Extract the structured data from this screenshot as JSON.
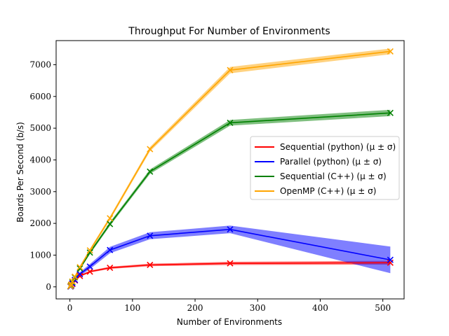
{
  "chart_data": {
    "type": "line",
    "title": "Throughput For Number of Environments",
    "xlabel": "Number of Environments",
    "ylabel": "Boards Per Second (b/s)",
    "xlim": [
      -22,
      534
    ],
    "ylim": [
      -380,
      7760
    ],
    "x_ticks": [
      0,
      100,
      200,
      300,
      400,
      500
    ],
    "y_ticks": [
      0,
      1000,
      2000,
      3000,
      4000,
      5000,
      6000,
      7000
    ],
    "grid": false,
    "legend_position": "center-right",
    "x": [
      1,
      2,
      4,
      8,
      16,
      32,
      64,
      128,
      256,
      512
    ],
    "series": [
      {
        "name": "Sequential (python) (μ ± σ)",
        "color": "#ff0000",
        "values": [
          10,
          30,
          90,
          200,
          340,
          480,
          600,
          690,
          740,
          760
        ],
        "std": [
          5,
          8,
          15,
          20,
          25,
          30,
          35,
          40,
          50,
          60
        ]
      },
      {
        "name": "Parallel (python) (μ ± σ)",
        "color": "#0000ff",
        "values": [
          10,
          40,
          110,
          220,
          400,
          640,
          1160,
          1610,
          1810,
          850
        ],
        "std": [
          5,
          10,
          20,
          40,
          60,
          80,
          100,
          110,
          120,
          420
        ]
      },
      {
        "name": "Sequential (C++) (μ ± σ)",
        "color": "#008000",
        "values": [
          20,
          60,
          150,
          300,
          580,
          1080,
          1980,
          3630,
          5170,
          5480
        ],
        "std": [
          5,
          10,
          20,
          30,
          40,
          50,
          60,
          70,
          90,
          100
        ]
      },
      {
        "name": "OpenMP (C++) (μ ± σ)",
        "color": "#ffa500",
        "values": [
          25,
          70,
          170,
          320,
          620,
          1150,
          2160,
          4340,
          6830,
          7420
        ],
        "std": [
          5,
          10,
          20,
          30,
          40,
          50,
          60,
          70,
          100,
          90
        ]
      }
    ]
  }
}
